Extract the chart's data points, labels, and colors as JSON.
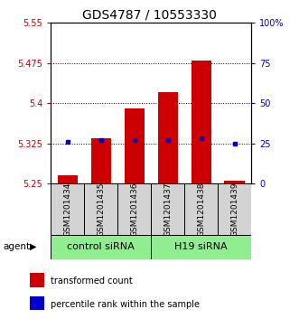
{
  "title": "GDS4787 / 10553330",
  "samples": [
    "GSM1201434",
    "GSM1201435",
    "GSM1201436",
    "GSM1201437",
    "GSM1201438",
    "GSM1201439"
  ],
  "bar_values": [
    5.265,
    5.335,
    5.39,
    5.42,
    5.48,
    5.255
  ],
  "bar_base": 5.25,
  "percentile_values": [
    26,
    27,
    27,
    27,
    28,
    25
  ],
  "ylim_left": [
    5.25,
    5.55
  ],
  "ylim_right": [
    0,
    100
  ],
  "yticks_left": [
    5.25,
    5.325,
    5.4,
    5.475,
    5.55
  ],
  "yticks_right": [
    0,
    25,
    50,
    75,
    100
  ],
  "ytick_labels_left": [
    "5.25",
    "5.325",
    "5.4",
    "5.475",
    "5.55"
  ],
  "ytick_labels_right": [
    "0",
    "25",
    "50",
    "75",
    "100%"
  ],
  "hlines": [
    5.325,
    5.4,
    5.475
  ],
  "groups": [
    {
      "label": "control siRNA",
      "start": 0,
      "end": 3
    },
    {
      "label": "H19 siRNA",
      "start": 3,
      "end": 6
    }
  ],
  "bar_color": "#cc0000",
  "percentile_color": "#0000cc",
  "bar_width": 0.6,
  "agent_label": "agent",
  "legend_items": [
    {
      "color": "#cc0000",
      "label": "transformed count"
    },
    {
      "color": "#0000cc",
      "label": "percentile rank within the sample"
    }
  ],
  "title_fontsize": 10,
  "tick_fontsize": 7,
  "label_fontsize": 8,
  "sample_label_fontsize": 6.5,
  "legend_fontsize": 7
}
